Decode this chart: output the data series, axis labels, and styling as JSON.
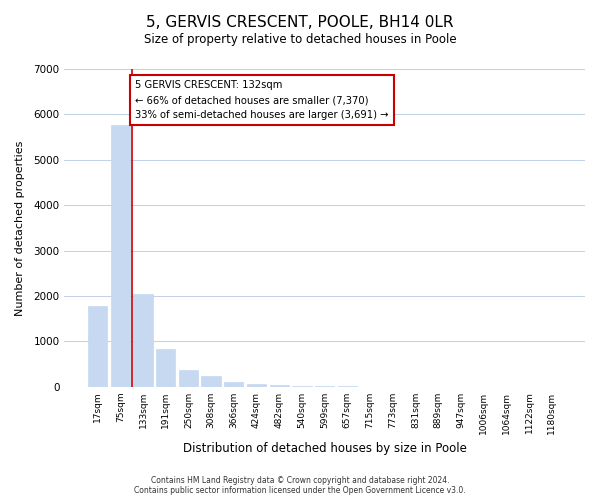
{
  "title_line1": "5, GERVIS CRESCENT, POOLE, BH14 0LR",
  "title_line2": "Size of property relative to detached houses in Poole",
  "xlabel": "Distribution of detached houses by size in Poole",
  "ylabel": "Number of detached properties",
  "bar_labels": [
    "17sqm",
    "75sqm",
    "133sqm",
    "191sqm",
    "250sqm",
    "308sqm",
    "366sqm",
    "424sqm",
    "482sqm",
    "540sqm",
    "599sqm",
    "657sqm",
    "715sqm",
    "773sqm",
    "831sqm",
    "889sqm",
    "947sqm",
    "1006sqm",
    "1064sqm",
    "1122sqm",
    "1180sqm"
  ],
  "bar_values": [
    1780,
    5760,
    2050,
    830,
    370,
    230,
    110,
    65,
    30,
    15,
    8,
    4,
    2,
    0,
    0,
    0,
    0,
    0,
    0,
    0,
    0
  ],
  "bar_color": "#c6d9f0",
  "marker_index": 2,
  "marker_color": "#cc0000",
  "annotation_lines": [
    "5 GERVIS CRESCENT: 132sqm",
    "← 66% of detached houses are smaller (7,370)",
    "33% of semi-detached houses are larger (3,691) →"
  ],
  "annotation_box_color": "#ffffff",
  "annotation_box_edgecolor": "#cc0000",
  "ylim": [
    0,
    7000
  ],
  "yticks": [
    0,
    1000,
    2000,
    3000,
    4000,
    5000,
    6000,
    7000
  ],
  "footer_line1": "Contains HM Land Registry data © Crown copyright and database right 2024.",
  "footer_line2": "Contains public sector information licensed under the Open Government Licence v3.0.",
  "background_color": "#ffffff",
  "plot_bg_color": "#ffffff",
  "grid_color": "#c0d0e8"
}
